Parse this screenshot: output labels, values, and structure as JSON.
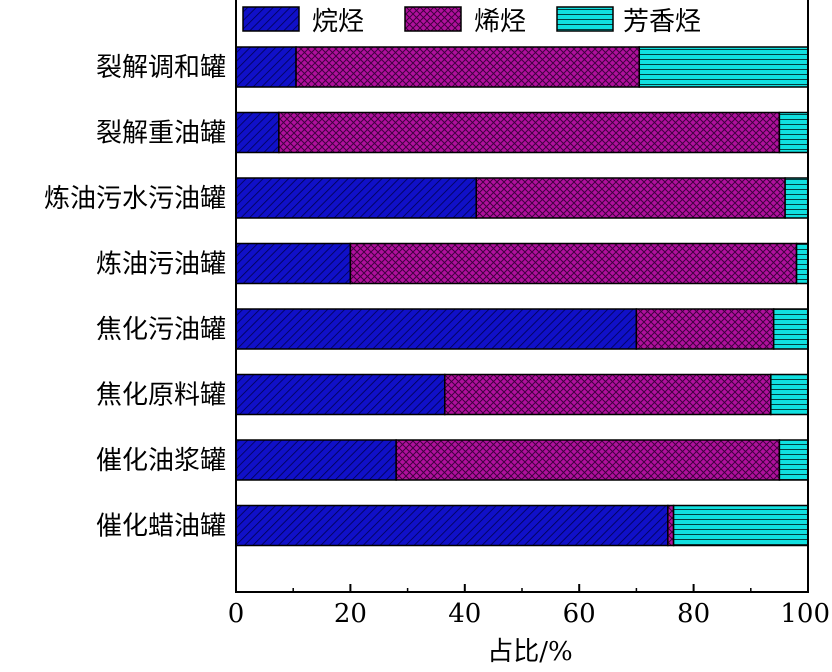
{
  "chart_data": {
    "type": "bar",
    "orientation": "horizontal",
    "stacked": true,
    "categories": [
      "裂解调和罐",
      "裂解重油罐",
      "炼油污水污油罐",
      "炼油污油罐",
      "焦化污油罐",
      "焦化原料罐",
      "催化油浆罐",
      "催化蜡油罐"
    ],
    "series": [
      {
        "name": "烷烃",
        "color": "#1010c8",
        "pattern": "diagonal-hatch",
        "values": [
          10.5,
          7.5,
          42,
          20,
          70,
          36.5,
          28,
          75.5
        ]
      },
      {
        "name": "烯烃",
        "color": "#b0109c",
        "pattern": "crosshatch",
        "values": [
          60,
          87.5,
          54,
          78,
          24,
          57,
          67,
          1
        ]
      },
      {
        "name": "芳香烃",
        "color": "#10e0e0",
        "pattern": "horizontal-lines",
        "values": [
          29.5,
          5,
          4,
          2,
          6,
          6.5,
          5,
          23.5
        ]
      }
    ],
    "xlabel": "占比/%",
    "ylabel": "",
    "xlim": [
      0,
      100
    ],
    "xticks": [
      "0",
      "20",
      "40",
      "60",
      "80",
      "100"
    ],
    "legend_position": "top",
    "grid": false
  }
}
